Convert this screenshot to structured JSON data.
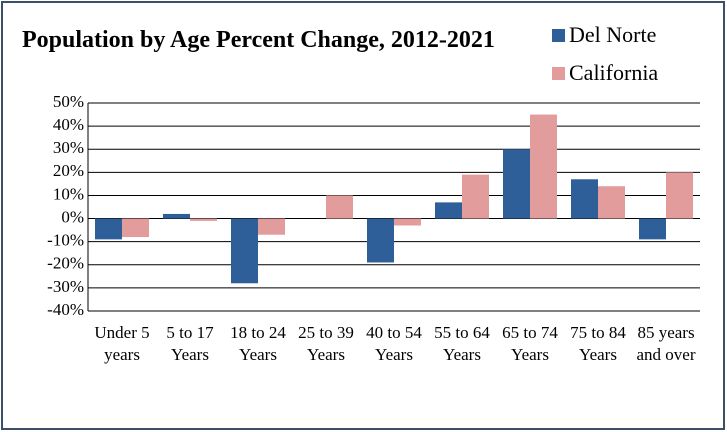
{
  "chart_data": {
    "type": "bar",
    "title": "Population by Age Percent Change, 2012-2021",
    "categories": [
      "Under 5 years",
      "5 to 17 Years",
      "18 to 24 Years",
      "25 to 39 Years",
      "40 to 54 Years",
      "55 to 64 Years",
      "65 to 74 Years",
      "75 to 84 Years",
      "85 years and over"
    ],
    "series": [
      {
        "name": "Del Norte",
        "color": "#2f5f98",
        "values": [
          -9,
          2,
          -28,
          0,
          -19,
          7,
          30,
          17,
          -9
        ]
      },
      {
        "name": "California",
        "color": "#e39c9c",
        "values": [
          -8,
          -1,
          -7,
          10,
          -3,
          19,
          45,
          14,
          20
        ]
      }
    ],
    "ylim": [
      -40,
      50
    ],
    "yticks": [
      {
        "value": -40,
        "label": "-40%"
      },
      {
        "value": -30,
        "label": "-30%"
      },
      {
        "value": -20,
        "label": "-20%"
      },
      {
        "value": -10,
        "label": "-10%"
      },
      {
        "value": 0,
        "label": "0%"
      },
      {
        "value": 10,
        "label": "10%"
      },
      {
        "value": 20,
        "label": "20%"
      },
      {
        "value": 30,
        "label": "30%"
      },
      {
        "value": 40,
        "label": "40%"
      },
      {
        "value": 50,
        "label": "50%"
      }
    ],
    "grid": true,
    "legend": "top-right"
  }
}
